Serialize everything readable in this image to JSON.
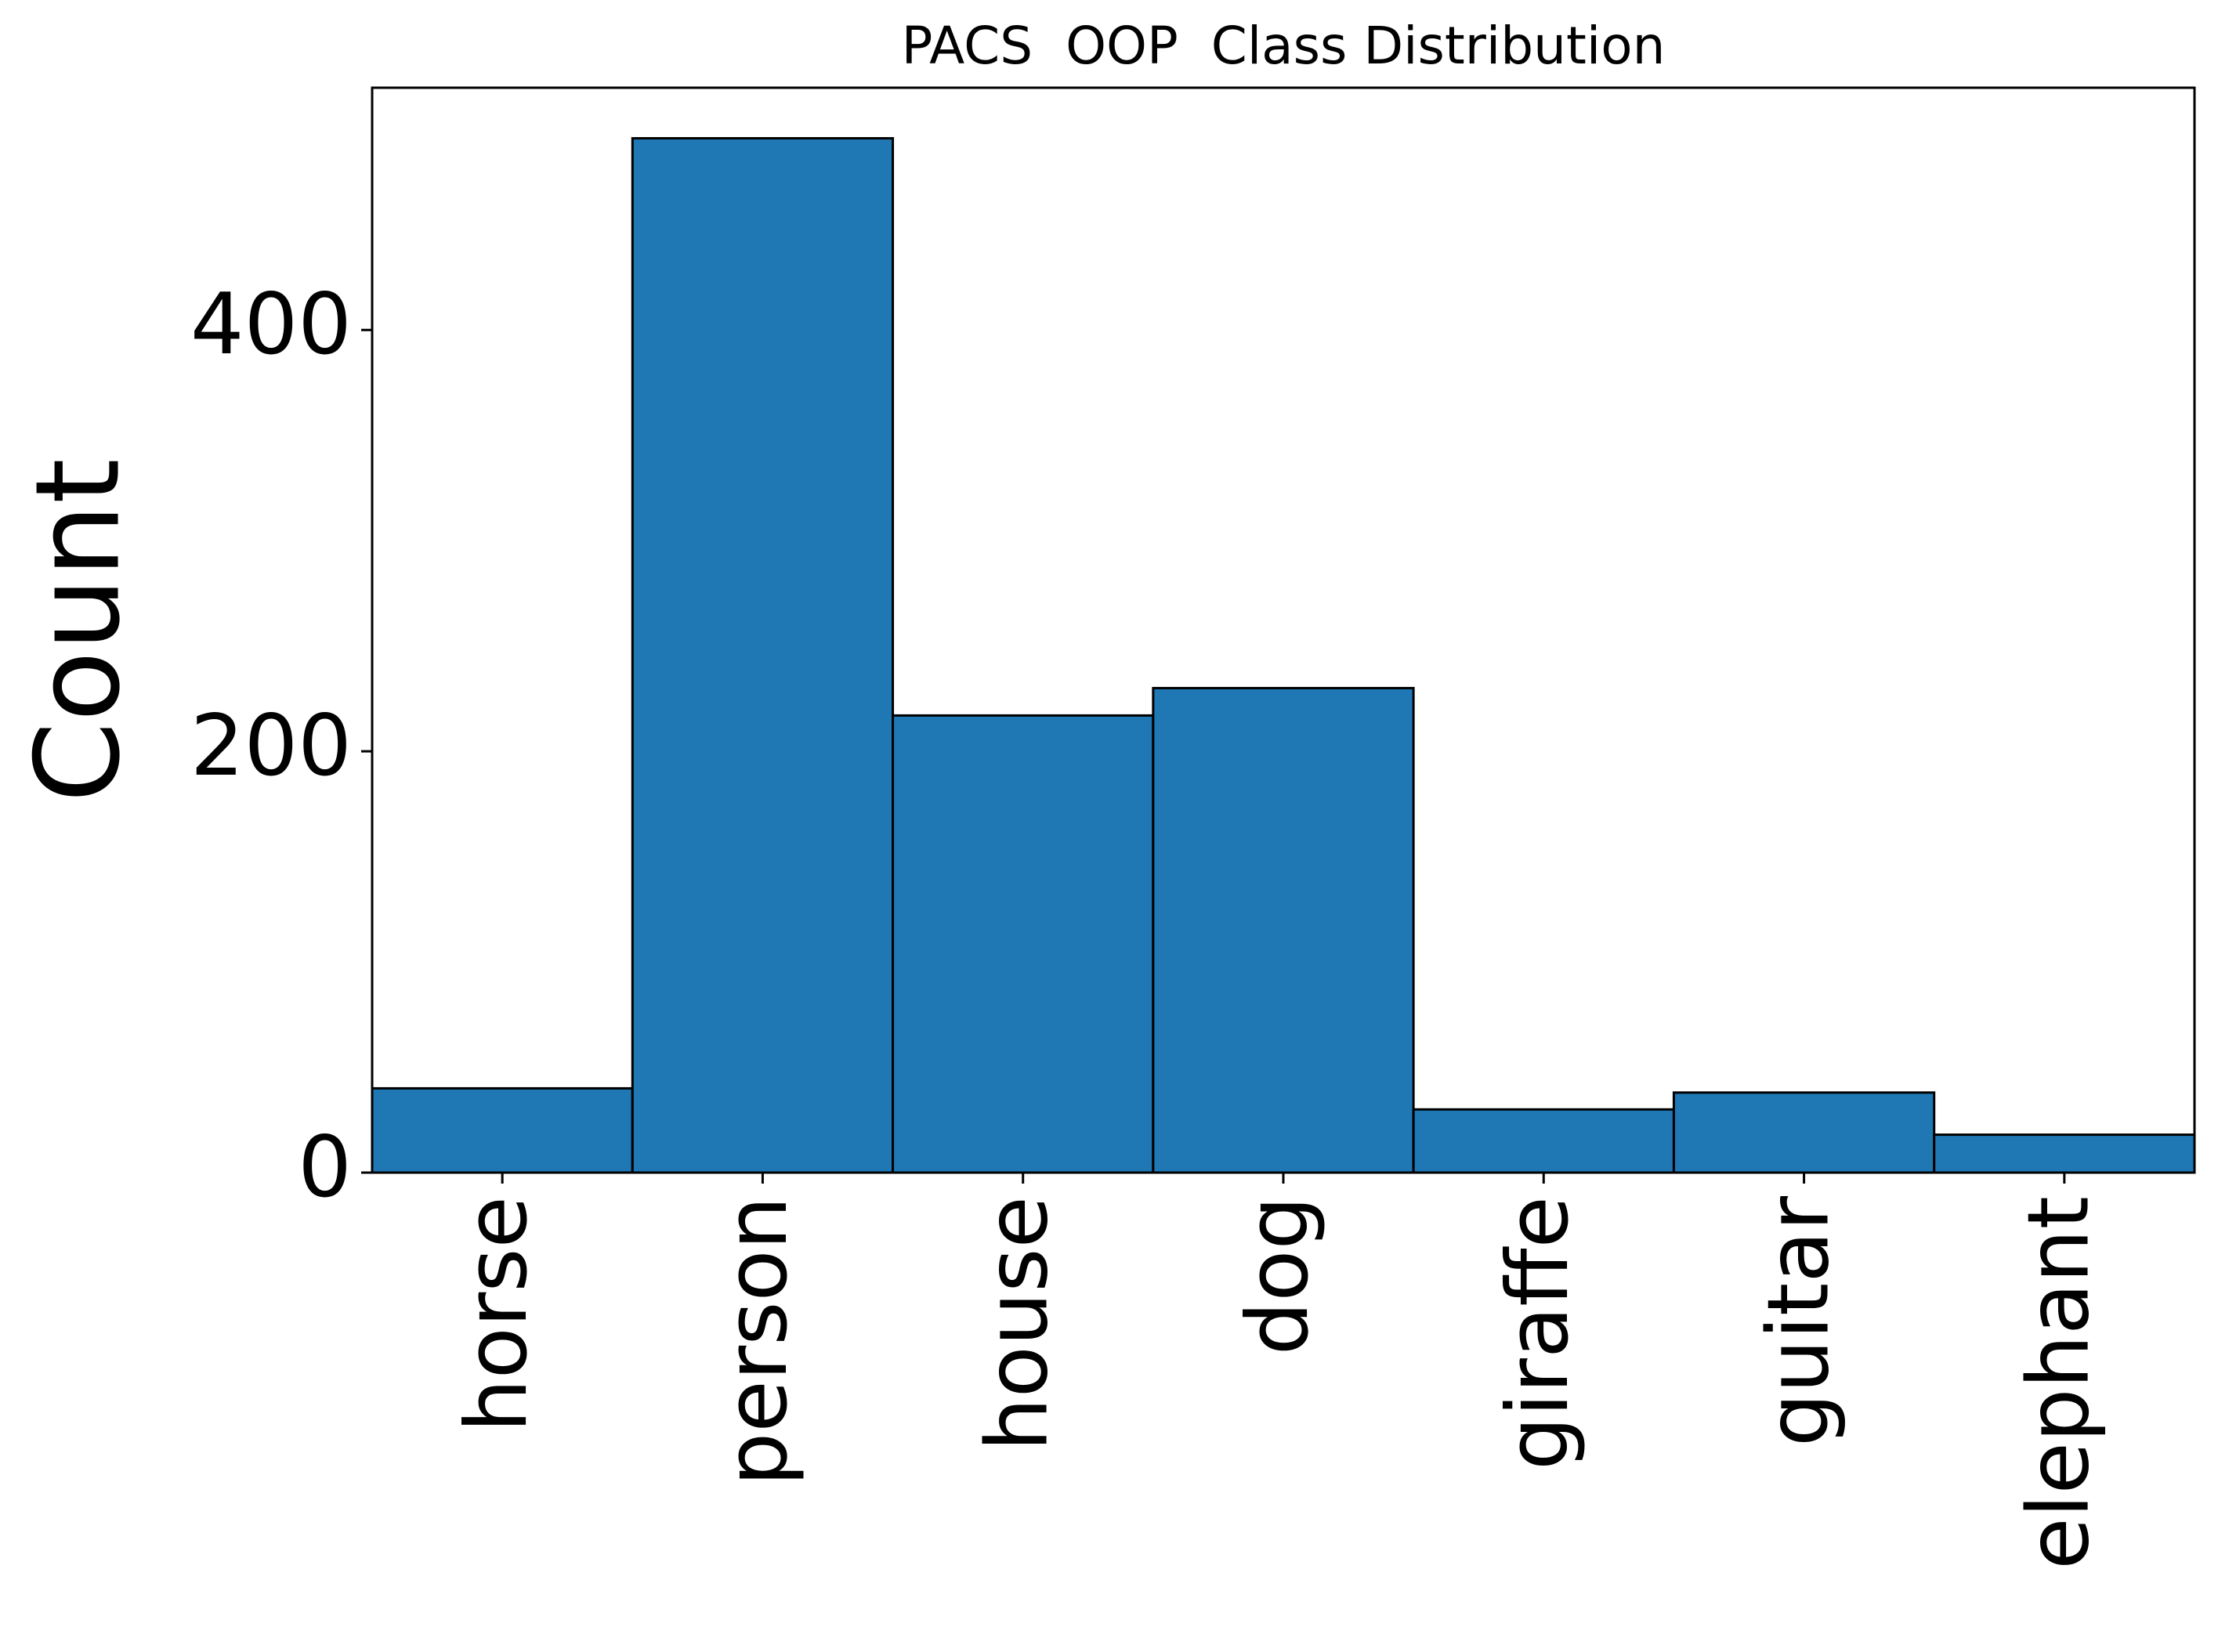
{
  "chart_data": {
    "type": "bar",
    "title": "PACS  OOP  Class Distribution",
    "y_label": "Count",
    "categories": [
      "horse",
      "person",
      "house",
      "dog",
      "giraffe",
      "guitar",
      "elephant"
    ],
    "values": [
      40,
      491,
      217,
      230,
      30,
      38,
      18
    ],
    "color": "#1f77b4",
    "ylim": [
      0,
      515
    ],
    "yticks": [
      0,
      200,
      400
    ],
    "grid": false
  }
}
